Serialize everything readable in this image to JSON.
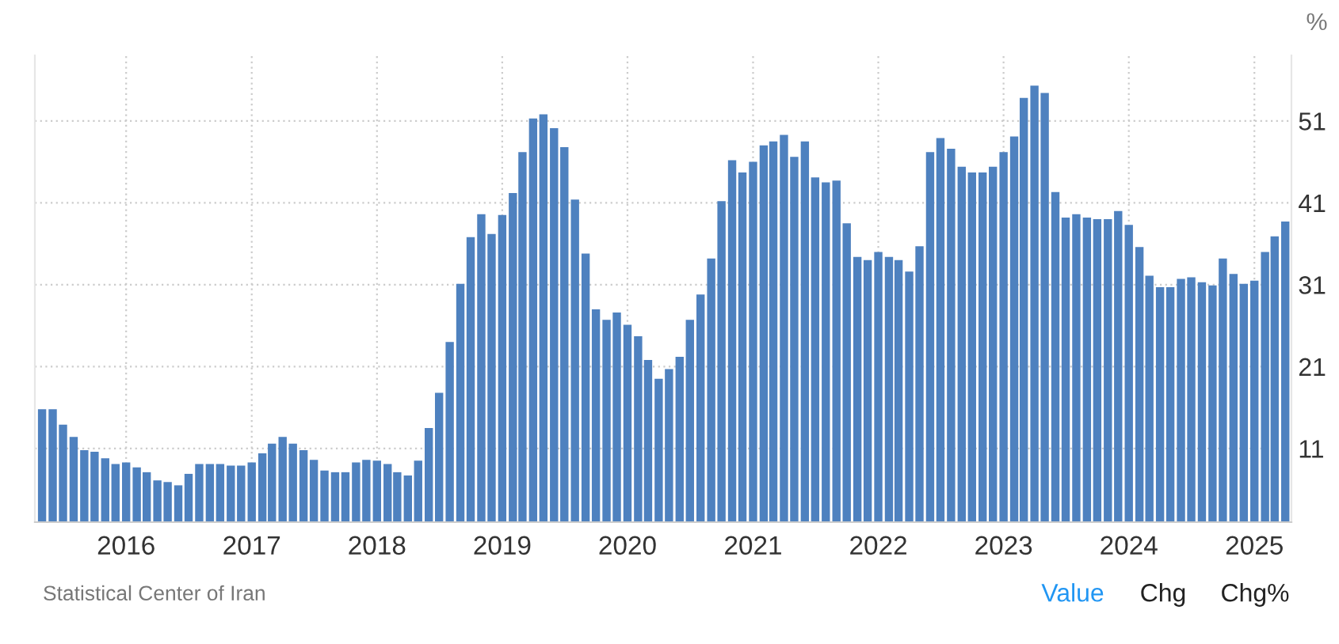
{
  "chart_data": {
    "type": "bar",
    "ylabel": "%",
    "x": [
      "2015-05",
      "2015-06",
      "2015-07",
      "2015-08",
      "2015-09",
      "2015-10",
      "2015-11",
      "2015-12",
      "2016-01",
      "2016-02",
      "2016-03",
      "2016-04",
      "2016-05",
      "2016-06",
      "2016-07",
      "2016-08",
      "2016-09",
      "2016-10",
      "2016-11",
      "2016-12",
      "2017-01",
      "2017-02",
      "2017-03",
      "2017-04",
      "2017-05",
      "2017-06",
      "2017-07",
      "2017-08",
      "2017-09",
      "2017-10",
      "2017-11",
      "2017-12",
      "2018-01",
      "2018-02",
      "2018-03",
      "2018-04",
      "2018-05",
      "2018-06",
      "2018-07",
      "2018-08",
      "2018-09",
      "2018-10",
      "2018-11",
      "2018-12",
      "2019-01",
      "2019-02",
      "2019-03",
      "2019-04",
      "2019-05",
      "2019-06",
      "2019-07",
      "2019-08",
      "2019-09",
      "2019-10",
      "2019-11",
      "2019-12",
      "2020-01",
      "2020-02",
      "2020-03",
      "2020-04",
      "2020-05",
      "2020-06",
      "2020-07",
      "2020-08",
      "2020-09",
      "2020-10",
      "2020-11",
      "2020-12",
      "2021-01",
      "2021-02",
      "2021-03",
      "2021-04",
      "2021-05",
      "2021-06",
      "2021-07",
      "2021-08",
      "2021-09",
      "2021-10",
      "2021-11",
      "2021-12",
      "2022-01",
      "2022-02",
      "2022-03",
      "2022-04",
      "2022-05",
      "2022-06",
      "2022-07",
      "2022-08",
      "2022-09",
      "2022-10",
      "2022-11",
      "2022-12",
      "2023-01",
      "2023-02",
      "2023-03",
      "2023-04",
      "2023-05",
      "2023-06",
      "2023-07",
      "2023-08",
      "2023-09",
      "2023-10",
      "2023-11",
      "2023-12",
      "2024-01",
      "2024-02",
      "2024-03",
      "2024-04",
      "2024-05",
      "2024-06",
      "2024-07",
      "2024-08",
      "2024-09",
      "2024-10",
      "2024-11",
      "2024-12",
      "2025-01",
      "2025-02",
      "2025-03",
      "2025-04"
    ],
    "values": [
      15.8,
      15.8,
      13.9,
      12.4,
      10.8,
      10.6,
      9.8,
      9.1,
      9.3,
      8.7,
      8.1,
      7.1,
      6.9,
      6.5,
      7.9,
      9.1,
      9.1,
      9.1,
      8.9,
      8.9,
      9.3,
      10.4,
      11.6,
      12.4,
      11.6,
      10.8,
      9.6,
      8.3,
      8.1,
      8.1,
      9.3,
      9.6,
      9.5,
      9.1,
      8.1,
      7.7,
      9.5,
      13.5,
      17.8,
      24.0,
      31.1,
      36.8,
      39.6,
      37.2,
      39.5,
      42.2,
      47.2,
      51.3,
      51.8,
      50.1,
      47.8,
      41.4,
      34.8,
      28.0,
      26.7,
      27.6,
      26.1,
      24.7,
      21.8,
      19.5,
      20.7,
      22.2,
      26.7,
      29.8,
      34.2,
      41.2,
      46.2,
      44.7,
      46.0,
      48.0,
      48.5,
      49.3,
      46.6,
      48.5,
      44.1,
      43.5,
      43.7,
      38.5,
      34.4,
      34.0,
      35.0,
      34.4,
      34.0,
      32.6,
      35.7,
      47.2,
      48.9,
      47.6,
      45.4,
      44.7,
      44.7,
      45.4,
      47.2,
      49.1,
      53.8,
      55.3,
      54.4,
      42.3,
      39.2,
      39.6,
      39.2,
      39.0,
      39.0,
      40.0,
      38.3,
      35.6,
      32.1,
      30.7,
      30.7,
      31.7,
      31.9,
      31.3,
      30.9,
      34.2,
      32.3,
      31.1,
      31.5,
      35.0,
      36.9,
      38.7
    ],
    "color": "#4e81bf",
    "xlim": [
      "2015-04-10",
      "2025-04-19"
    ],
    "xticks": [
      {
        "value": "2016-01-01",
        "label": "2016"
      },
      {
        "value": "2017-01-01",
        "label": "2017"
      },
      {
        "value": "2018-01-01",
        "label": "2018"
      },
      {
        "value": "2019-01-01",
        "label": "2019"
      },
      {
        "value": "2020-01-01",
        "label": "2020"
      },
      {
        "value": "2021-01-01",
        "label": "2021"
      },
      {
        "value": "2022-01-01",
        "label": "2022"
      },
      {
        "value": "2023-01-01",
        "label": "2023"
      },
      {
        "value": "2024-01-01",
        "label": "2024"
      },
      {
        "value": "2025-01-01",
        "label": "2025"
      }
    ],
    "ylim": [
      2,
      59
    ],
    "yticks": [
      11,
      21,
      31,
      41,
      51
    ],
    "grid": true,
    "legend": false,
    "annotations": [
      "Statistical Center of Iran",
      "Value",
      "Chg",
      "Chg%"
    ]
  }
}
